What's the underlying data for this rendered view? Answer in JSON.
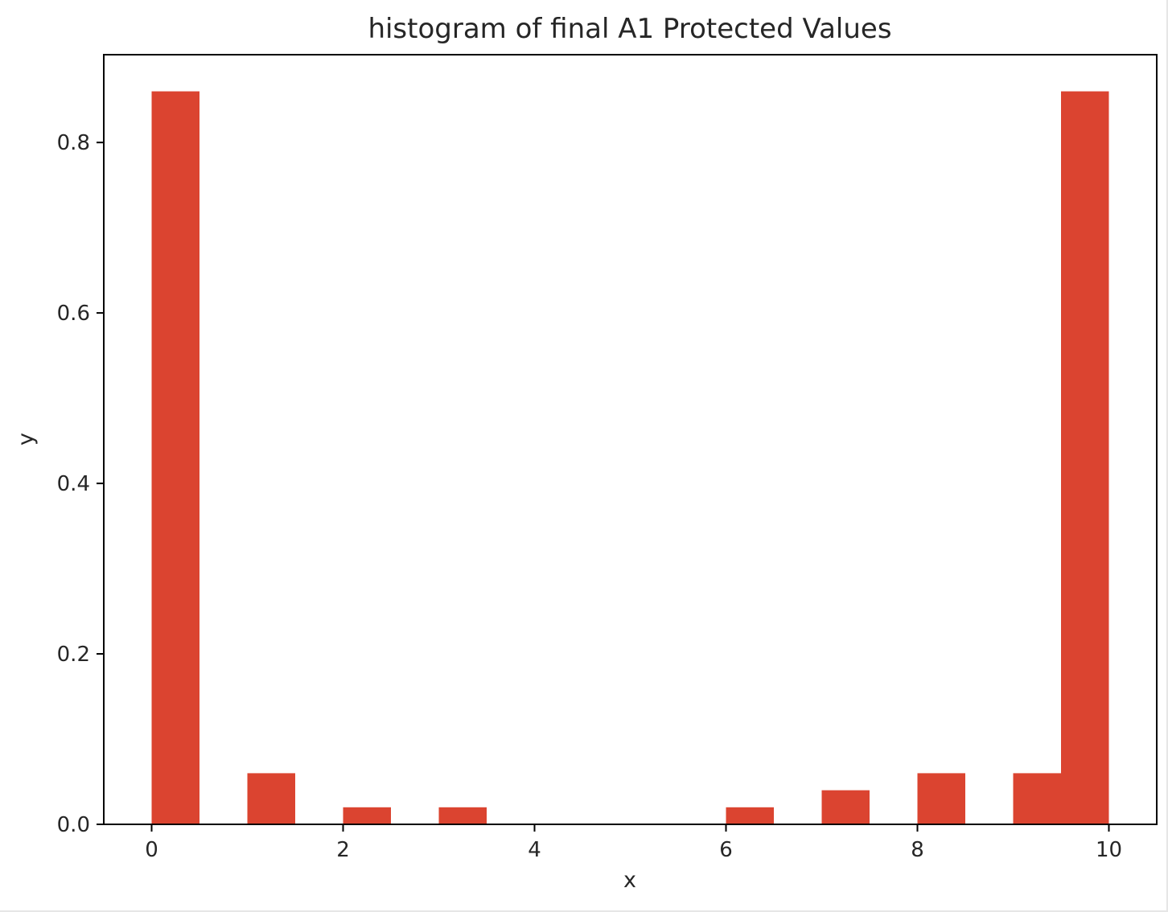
{
  "chart_data": {
    "type": "bar",
    "title": "histogram of final A1 Protected Values",
    "xlabel": "x",
    "ylabel": "y",
    "xlim": [
      -0.5,
      10.5
    ],
    "ylim": [
      0,
      0.903
    ],
    "xticks": [
      0,
      2,
      4,
      6,
      8,
      10
    ],
    "xtick_labels": [
      "0",
      "2",
      "4",
      "6",
      "8",
      "10"
    ],
    "yticks": [
      0.0,
      0.2,
      0.4,
      0.6,
      0.8
    ],
    "ytick_labels": [
      "0.0",
      "0.2",
      "0.4",
      "0.6",
      "0.8"
    ],
    "grid": false,
    "bar_color": "#db4430",
    "bins": [
      {
        "x0": 0.0,
        "x1": 0.5,
        "value": 0.86
      },
      {
        "x0": 1.0,
        "x1": 1.5,
        "value": 0.06
      },
      {
        "x0": 2.0,
        "x1": 2.5,
        "value": 0.02
      },
      {
        "x0": 3.0,
        "x1": 3.5,
        "value": 0.02
      },
      {
        "x0": 6.0,
        "x1": 6.5,
        "value": 0.02
      },
      {
        "x0": 7.0,
        "x1": 7.5,
        "value": 0.04
      },
      {
        "x0": 8.0,
        "x1": 8.5,
        "value": 0.06
      },
      {
        "x0": 9.0,
        "x1": 9.5,
        "value": 0.06
      },
      {
        "x0": 9.5,
        "x1": 10.0,
        "value": 0.86
      }
    ]
  }
}
